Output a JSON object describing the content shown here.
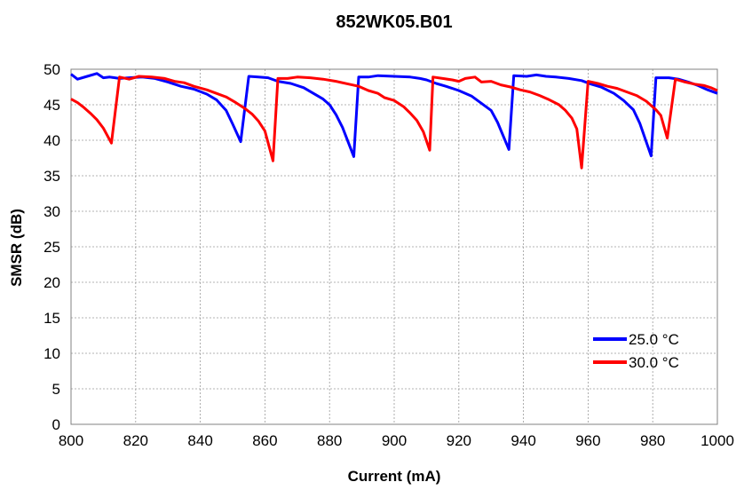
{
  "chart_data": {
    "type": "line",
    "title": "852WK05.B01",
    "xlabel": "Current (mA)",
    "ylabel": "SMSR (dB)",
    "xlim": [
      800,
      1000
    ],
    "ylim": [
      0,
      50
    ],
    "xticks": [
      "800",
      "820",
      "840",
      "860",
      "880",
      "900",
      "920",
      "940",
      "960",
      "980",
      "1000"
    ],
    "yticks": [
      "0",
      "5",
      "10",
      "15",
      "20",
      "25",
      "30",
      "35",
      "40",
      "45",
      "50"
    ],
    "grid": true,
    "legend_position": "bottom-right",
    "series": [
      {
        "name": "25.0 °C",
        "color": "#0000ff",
        "points": [
          [
            800,
            49.3
          ],
          [
            802,
            48.6
          ],
          [
            805,
            49.0
          ],
          [
            808,
            49.4
          ],
          [
            810,
            48.8
          ],
          [
            812,
            48.9
          ],
          [
            815,
            48.7
          ],
          [
            818,
            48.8
          ],
          [
            822,
            48.9
          ],
          [
            826,
            48.7
          ],
          [
            830,
            48.2
          ],
          [
            834,
            47.6
          ],
          [
            838,
            47.2
          ],
          [
            842,
            46.5
          ],
          [
            845,
            45.7
          ],
          [
            848,
            44.2
          ],
          [
            850,
            42.3
          ],
          [
            852.5,
            39.8
          ],
          [
            855,
            49.0
          ],
          [
            858,
            48.9
          ],
          [
            861,
            48.8
          ],
          [
            864,
            48.3
          ],
          [
            868,
            48.0
          ],
          [
            872,
            47.4
          ],
          [
            875,
            46.6
          ],
          [
            878,
            45.8
          ],
          [
            880,
            45.0
          ],
          [
            882,
            43.6
          ],
          [
            884,
            41.8
          ],
          [
            887.5,
            37.7
          ],
          [
            889,
            48.9
          ],
          [
            892,
            48.9
          ],
          [
            895,
            49.1
          ],
          [
            900,
            49.0
          ],
          [
            905,
            48.9
          ],
          [
            908,
            48.7
          ],
          [
            910,
            48.5
          ],
          [
            913,
            48.0
          ],
          [
            916,
            47.6
          ],
          [
            920,
            47.0
          ],
          [
            924,
            46.2
          ],
          [
            927,
            45.2
          ],
          [
            930,
            44.2
          ],
          [
            932,
            42.5
          ],
          [
            935.5,
            38.7
          ],
          [
            937,
            49.1
          ],
          [
            941,
            49.0
          ],
          [
            944,
            49.2
          ],
          [
            947,
            49.0
          ],
          [
            950,
            48.9
          ],
          [
            954,
            48.7
          ],
          [
            958,
            48.4
          ],
          [
            961,
            47.9
          ],
          [
            964,
            47.5
          ],
          [
            968,
            46.6
          ],
          [
            971,
            45.6
          ],
          [
            974,
            44.3
          ],
          [
            976,
            42.4
          ],
          [
            979.5,
            37.8
          ],
          [
            981,
            48.8
          ],
          [
            985,
            48.8
          ],
          [
            988,
            48.6
          ],
          [
            991,
            48.2
          ],
          [
            994,
            47.7
          ],
          [
            997,
            47.1
          ],
          [
            1000,
            46.6
          ]
        ]
      },
      {
        "name": "30.0 °C",
        "color": "#ff0000",
        "points": [
          [
            800,
            45.8
          ],
          [
            802,
            45.3
          ],
          [
            804,
            44.6
          ],
          [
            806,
            43.8
          ],
          [
            808,
            42.9
          ],
          [
            810,
            41.7
          ],
          [
            812.5,
            39.6
          ],
          [
            815,
            48.9
          ],
          [
            818,
            48.6
          ],
          [
            821,
            49.0
          ],
          [
            825,
            48.9
          ],
          [
            829,
            48.7
          ],
          [
            832,
            48.3
          ],
          [
            835,
            48.1
          ],
          [
            838,
            47.6
          ],
          [
            842,
            47.1
          ],
          [
            845,
            46.6
          ],
          [
            848,
            46.1
          ],
          [
            851,
            45.3
          ],
          [
            854,
            44.4
          ],
          [
            856,
            43.7
          ],
          [
            858,
            42.7
          ],
          [
            860,
            41.3
          ],
          [
            862.5,
            37.1
          ],
          [
            864,
            48.7
          ],
          [
            867,
            48.7
          ],
          [
            870,
            48.9
          ],
          [
            874,
            48.8
          ],
          [
            878,
            48.6
          ],
          [
            882,
            48.3
          ],
          [
            886,
            47.9
          ],
          [
            889,
            47.6
          ],
          [
            892,
            47.0
          ],
          [
            895,
            46.6
          ],
          [
            897,
            46.0
          ],
          [
            900,
            45.6
          ],
          [
            903,
            44.7
          ],
          [
            905,
            43.8
          ],
          [
            907,
            42.8
          ],
          [
            909,
            41.2
          ],
          [
            911,
            38.6
          ],
          [
            912,
            48.9
          ],
          [
            915,
            48.7
          ],
          [
            918,
            48.5
          ],
          [
            920,
            48.3
          ],
          [
            922,
            48.7
          ],
          [
            925,
            48.9
          ],
          [
            927,
            48.2
          ],
          [
            930,
            48.3
          ],
          [
            933,
            47.8
          ],
          [
            936,
            47.5
          ],
          [
            939,
            47.1
          ],
          [
            942,
            46.8
          ],
          [
            945,
            46.3
          ],
          [
            948,
            45.7
          ],
          [
            951,
            45.0
          ],
          [
            953,
            44.2
          ],
          [
            955,
            43.1
          ],
          [
            956.5,
            41.6
          ],
          [
            958,
            36.1
          ],
          [
            960,
            48.3
          ],
          [
            963,
            48.0
          ],
          [
            966,
            47.6
          ],
          [
            969,
            47.3
          ],
          [
            972,
            46.8
          ],
          [
            975,
            46.3
          ],
          [
            978,
            45.5
          ],
          [
            981,
            44.3
          ],
          [
            982.5,
            43.5
          ],
          [
            984.5,
            40.3
          ],
          [
            987,
            48.6
          ],
          [
            990,
            48.2
          ],
          [
            993,
            47.9
          ],
          [
            996,
            47.7
          ],
          [
            998,
            47.4
          ],
          [
            1000,
            47.0
          ]
        ]
      }
    ]
  }
}
